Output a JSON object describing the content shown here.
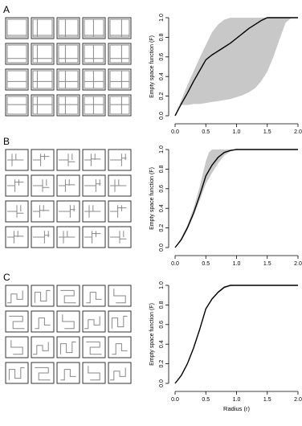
{
  "panels": [
    {
      "label": "A",
      "thumb_pattern": "cross",
      "chart_data": {
        "type": "line",
        "ylabel": "Empty space function (F)",
        "xlim": [
          0,
          2.0
        ],
        "ylim": [
          0,
          1.0
        ],
        "xticks": [
          "0.0",
          "0.5",
          "1.0",
          "1.5",
          "2.0"
        ],
        "yticks": [
          "0.0",
          "0.2",
          "0.4",
          "0.6",
          "0.8",
          "1.0"
        ],
        "series": [
          {
            "role": "mean",
            "x": [
              0.0,
              0.05,
              0.1,
              0.2,
              0.3,
              0.4,
              0.5,
              0.6,
              0.7,
              0.8,
              0.9,
              1.0,
              1.1,
              1.2,
              1.3,
              1.4,
              1.5,
              1.6,
              1.7,
              1.8,
              1.9,
              2.0
            ],
            "y": [
              0.0,
              0.06,
              0.12,
              0.23,
              0.35,
              0.46,
              0.57,
              0.62,
              0.66,
              0.7,
              0.74,
              0.79,
              0.84,
              0.89,
              0.93,
              0.97,
              1.0,
              1.0,
              1.0,
              1.0,
              1.0,
              1.0
            ]
          },
          {
            "role": "upper",
            "x": [
              0.0,
              0.05,
              0.1,
              0.2,
              0.3,
              0.4,
              0.5,
              0.6,
              0.7,
              0.8,
              0.9,
              1.0,
              1.1,
              1.2,
              1.3,
              1.4,
              1.5,
              1.6,
              1.7,
              1.8,
              1.9,
              2.0
            ],
            "y": [
              0.0,
              0.08,
              0.16,
              0.31,
              0.45,
              0.59,
              0.72,
              0.85,
              0.93,
              0.98,
              1.0,
              1.0,
              1.0,
              1.0,
              1.0,
              1.0,
              1.0,
              1.0,
              1.0,
              1.0,
              1.0,
              1.0
            ]
          },
          {
            "role": "lower",
            "x": [
              0.0,
              0.05,
              0.1,
              0.2,
              0.3,
              0.4,
              0.5,
              0.6,
              0.7,
              0.8,
              0.9,
              1.0,
              1.1,
              1.2,
              1.3,
              1.4,
              1.5,
              1.6,
              1.7,
              1.8,
              1.9,
              2.0
            ],
            "y": [
              0.0,
              0.1,
              0.11,
              0.11,
              0.12,
              0.12,
              0.13,
              0.14,
              0.15,
              0.16,
              0.17,
              0.19,
              0.21,
              0.24,
              0.28,
              0.35,
              0.45,
              0.6,
              0.78,
              0.95,
              1.0,
              1.0
            ]
          }
        ]
      }
    },
    {
      "label": "B",
      "thumb_pattern": "branch",
      "chart_data": {
        "type": "line",
        "ylabel": "Empty space function (F)",
        "xlim": [
          0,
          2.0
        ],
        "ylim": [
          0,
          1.0
        ],
        "xticks": [
          "0.0",
          "0.5",
          "1.0",
          "1.5",
          "2.0"
        ],
        "yticks": [
          "0.0",
          "0.2",
          "0.4",
          "0.6",
          "0.8",
          "1.0"
        ],
        "series": [
          {
            "role": "mean",
            "x": [
              0.0,
              0.05,
              0.1,
              0.2,
              0.3,
              0.4,
              0.5,
              0.6,
              0.7,
              0.8,
              0.9,
              1.0,
              1.5,
              2.0
            ],
            "y": [
              0.0,
              0.04,
              0.08,
              0.2,
              0.35,
              0.53,
              0.73,
              0.84,
              0.92,
              0.97,
              0.99,
              1.0,
              1.0,
              1.0
            ]
          },
          {
            "role": "upper",
            "x": [
              0.0,
              0.05,
              0.1,
              0.2,
              0.3,
              0.4,
              0.5,
              0.55,
              0.6,
              0.7,
              0.8,
              0.9,
              1.0,
              1.5,
              2.0
            ],
            "y": [
              0.0,
              0.05,
              0.1,
              0.23,
              0.4,
              0.62,
              0.88,
              0.97,
              1.0,
              1.0,
              1.0,
              1.0,
              1.0,
              1.0,
              1.0
            ]
          },
          {
            "role": "lower",
            "x": [
              0.0,
              0.05,
              0.1,
              0.2,
              0.3,
              0.4,
              0.5,
              0.6,
              0.7,
              0.8,
              0.9,
              1.0,
              1.5,
              2.0
            ],
            "y": [
              0.0,
              0.03,
              0.07,
              0.18,
              0.32,
              0.48,
              0.65,
              0.76,
              0.86,
              0.94,
              0.98,
              1.0,
              1.0,
              1.0
            ]
          }
        ]
      }
    },
    {
      "label": "C",
      "thumb_pattern": "maze",
      "chart_data": {
        "type": "line",
        "xlabel": "Radius (r)",
        "ylabel": "Empty space function (F)",
        "xlim": [
          0,
          2.0
        ],
        "ylim": [
          0,
          1.0
        ],
        "xticks": [
          "0.0",
          "0.5",
          "1.0",
          "1.5",
          "2.0"
        ],
        "yticks": [
          "0.0",
          "0.2",
          "0.4",
          "0.6",
          "0.8",
          "1.0"
        ],
        "series": [
          {
            "role": "mean",
            "x": [
              0.0,
              0.05,
              0.1,
              0.2,
              0.3,
              0.4,
              0.5,
              0.6,
              0.7,
              0.8,
              0.9,
              1.0,
              1.5,
              2.0
            ],
            "y": [
              0.0,
              0.04,
              0.08,
              0.2,
              0.36,
              0.55,
              0.76,
              0.86,
              0.93,
              0.98,
              1.0,
              1.0,
              1.0,
              1.0
            ]
          },
          {
            "role": "upper",
            "x": [
              0.0,
              0.05,
              0.1,
              0.2,
              0.3,
              0.4,
              0.5,
              0.6,
              0.7,
              0.8,
              0.9,
              1.0,
              1.5,
              2.0
            ],
            "y": [
              0.0,
              0.045,
              0.09,
              0.21,
              0.37,
              0.56,
              0.77,
              0.87,
              0.94,
              0.99,
              1.0,
              1.0,
              1.0,
              1.0
            ]
          },
          {
            "role": "lower",
            "x": [
              0.0,
              0.05,
              0.1,
              0.2,
              0.3,
              0.4,
              0.5,
              0.6,
              0.7,
              0.8,
              0.9,
              1.0,
              1.5,
              2.0
            ],
            "y": [
              0.0,
              0.035,
              0.075,
              0.19,
              0.35,
              0.54,
              0.75,
              0.85,
              0.92,
              0.97,
              0.99,
              1.0,
              1.0,
              1.0
            ]
          }
        ]
      }
    }
  ],
  "colors": {
    "band": "#c8c8c8",
    "line": "#000000",
    "frame": "#333333",
    "thumb_line": "#888888"
  }
}
